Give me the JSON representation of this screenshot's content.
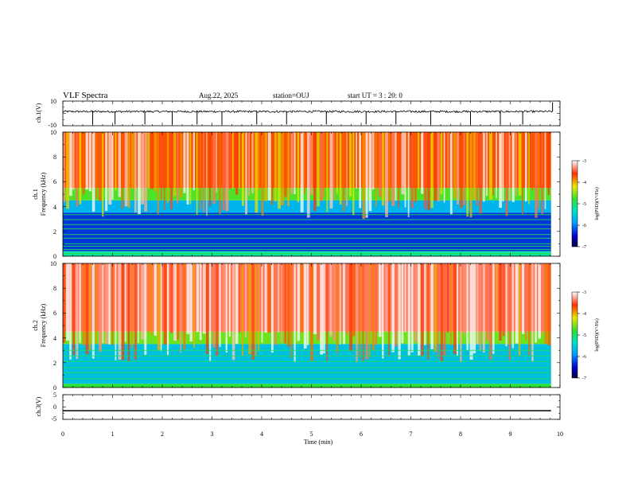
{
  "header": {
    "title": "VLF Spectra",
    "date": "Aug.22, 2025",
    "station": "station=OUJ",
    "start": "start  UT =   3 : 20: 0"
  },
  "chart_data": [
    {
      "type": "line",
      "name": "ch1-waveform",
      "ylabel": "ch.1(V)",
      "ylim": [
        -10,
        10
      ],
      "yticks": [
        "10",
        "-10"
      ],
      "baseline": 1.5,
      "noise_amplitude": 0.8,
      "spike_times_min": [
        0.6,
        1.05,
        1.65,
        2.2,
        2.7,
        3.2,
        3.9,
        4.5,
        5.3,
        6.1,
        6.7,
        7.4,
        8.2,
        8.8,
        9.25
      ],
      "spike_min": -9,
      "end_spike_max": 9,
      "xlim": [
        0,
        10
      ]
    },
    {
      "type": "heatmap",
      "name": "ch1-spectrogram",
      "ylabel_1": "ch.1",
      "ylabel_2": "Frequency (kHz)",
      "xlim": [
        0,
        10
      ],
      "ylim": [
        0,
        10
      ],
      "yticks": [
        "10",
        "8",
        "6",
        "4",
        "2",
        "0"
      ],
      "data_end_min": 9.82,
      "colorbar": {
        "label": "log(PSD)(V²/Hz)",
        "ticks": [
          "-3",
          "-4",
          "-5",
          "-6",
          "-7"
        ],
        "range": [
          -7,
          -3
        ]
      },
      "bands": [
        {
          "fmin": 5.5,
          "fmax": 10,
          "level": -3.7
        },
        {
          "fmin": 4.5,
          "fmax": 5.5,
          "level": -4.7
        },
        {
          "fmin": 3.5,
          "fmax": 4.5,
          "level": -5.7
        },
        {
          "fmin": 0.4,
          "fmax": 3.5,
          "level": -6.3
        },
        {
          "fmin": 0,
          "fmax": 0.4,
          "level": -5.2
        }
      ],
      "lines_khz": [
        0.2,
        0.55,
        0.8,
        1.0,
        1.45,
        1.75,
        2.2,
        2.55,
        2.95,
        3.35
      ]
    },
    {
      "type": "heatmap",
      "name": "ch2-spectrogram",
      "ylabel_1": "ch.2",
      "ylabel_2": "Frequency (kHz)",
      "xlim": [
        0,
        10
      ],
      "ylim": [
        0,
        10
      ],
      "yticks": [
        "10",
        "8",
        "6",
        "4",
        "2",
        "0"
      ],
      "data_end_min": 9.82,
      "colorbar": {
        "label": "log(PSD)(V²/Hz)",
        "ticks": [
          "-3",
          "-4",
          "-5",
          "-6",
          "-7"
        ],
        "range": [
          -7,
          -3
        ]
      },
      "bands": [
        {
          "fmin": 4.5,
          "fmax": 10,
          "level": -3.4
        },
        {
          "fmin": 3.5,
          "fmax": 4.5,
          "level": -4.6
        },
        {
          "fmin": 0.3,
          "fmax": 3.5,
          "level": -5.6
        },
        {
          "fmin": 0,
          "fmax": 0.3,
          "level": -4.8
        }
      ],
      "lines_khz": [
        0.25,
        0.7,
        1.2,
        1.6,
        2.1,
        2.55,
        3.0
      ]
    },
    {
      "type": "line",
      "name": "ch3-waveform",
      "ylabel": "ch.3(V)",
      "ylim": [
        -5,
        5
      ],
      "yticks": [
        "5",
        "0",
        "-5"
      ],
      "constant_value": -1.5,
      "xlim": [
        0,
        10
      ],
      "data_end_min": 9.82
    }
  ],
  "xaxis": {
    "label": "Time (min)",
    "ticks": [
      "0",
      "1",
      "2",
      "3",
      "4",
      "5",
      "6",
      "7",
      "8",
      "9",
      "10"
    ]
  }
}
